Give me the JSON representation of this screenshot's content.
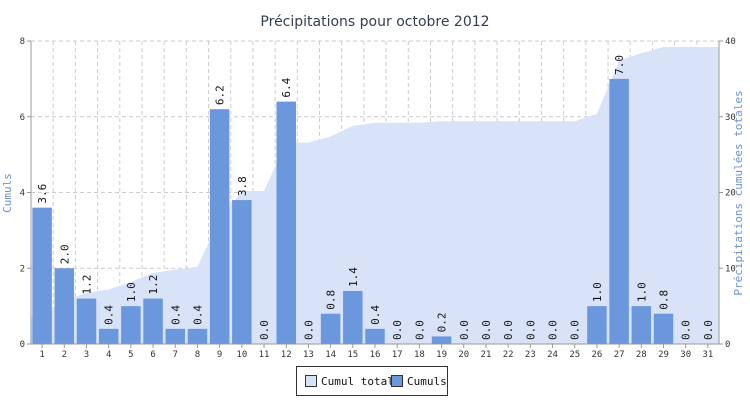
{
  "chart_data": {
    "type": "bar",
    "title": "Précipitations pour octobre 2012",
    "ylabel": "Cumuls",
    "y2label": "Précipitations cumulées totales",
    "ylim": [
      0,
      8
    ],
    "y2lim": [
      0,
      40
    ],
    "yticks": [
      "0",
      "2",
      "4",
      "6",
      "8"
    ],
    "y2ticks": [
      "0",
      "10",
      "20",
      "30",
      "40"
    ],
    "grid": true,
    "legend_position": "bottom-center",
    "categories": [
      "1",
      "2",
      "3",
      "4",
      "5",
      "6",
      "7",
      "8",
      "9",
      "10",
      "11",
      "12",
      "13",
      "14",
      "15",
      "16",
      "17",
      "18",
      "19",
      "20",
      "21",
      "22",
      "23",
      "24",
      "25",
      "26",
      "27",
      "28",
      "29",
      "30",
      "31"
    ],
    "series": [
      {
        "name": "Cumul total",
        "type": "area",
        "axis": "right",
        "color": "#d6e2f8",
        "values": [
          3.6,
          5.6,
          6.8,
          7.2,
          8.2,
          9.4,
          9.8,
          10.2,
          16.4,
          20.2,
          20.2,
          26.6,
          26.6,
          27.4,
          28.8,
          29.2,
          29.2,
          29.2,
          29.4,
          29.4,
          29.4,
          29.4,
          29.4,
          29.4,
          29.4,
          30.4,
          37.4,
          38.4,
          39.2,
          39.2,
          39.2
        ]
      },
      {
        "name": "Cumuls",
        "type": "bar",
        "axis": "left",
        "color": "#6b97dd",
        "values": [
          3.6,
          2.0,
          1.2,
          0.4,
          1.0,
          1.2,
          0.4,
          0.4,
          6.2,
          3.8,
          0.0,
          6.4,
          0.0,
          0.8,
          1.4,
          0.4,
          0.0,
          0.0,
          0.2,
          0.0,
          0.0,
          0.0,
          0.0,
          0.0,
          0.0,
          1.0,
          7.0,
          1.0,
          0.8,
          0.0,
          0.0
        ],
        "labels": [
          "3.6",
          "2.0",
          "1.2",
          "0.4",
          "1.0",
          "1.2",
          "0.4",
          "0.4",
          "6.2",
          "3.8",
          "0.0",
          "6.4",
          "0.0",
          "0.8",
          "1.4",
          "0.4",
          "0.0",
          "0.0",
          "0.2",
          "0.0",
          "0.0",
          "0.0",
          "0.0",
          "0.0",
          "0.0",
          "1.0",
          "7.0",
          "1.0",
          "0.8",
          "0.0",
          "0.0"
        ]
      }
    ]
  },
  "legend": {
    "area_label": "Cumul total",
    "bar_label": "Cumuls"
  }
}
